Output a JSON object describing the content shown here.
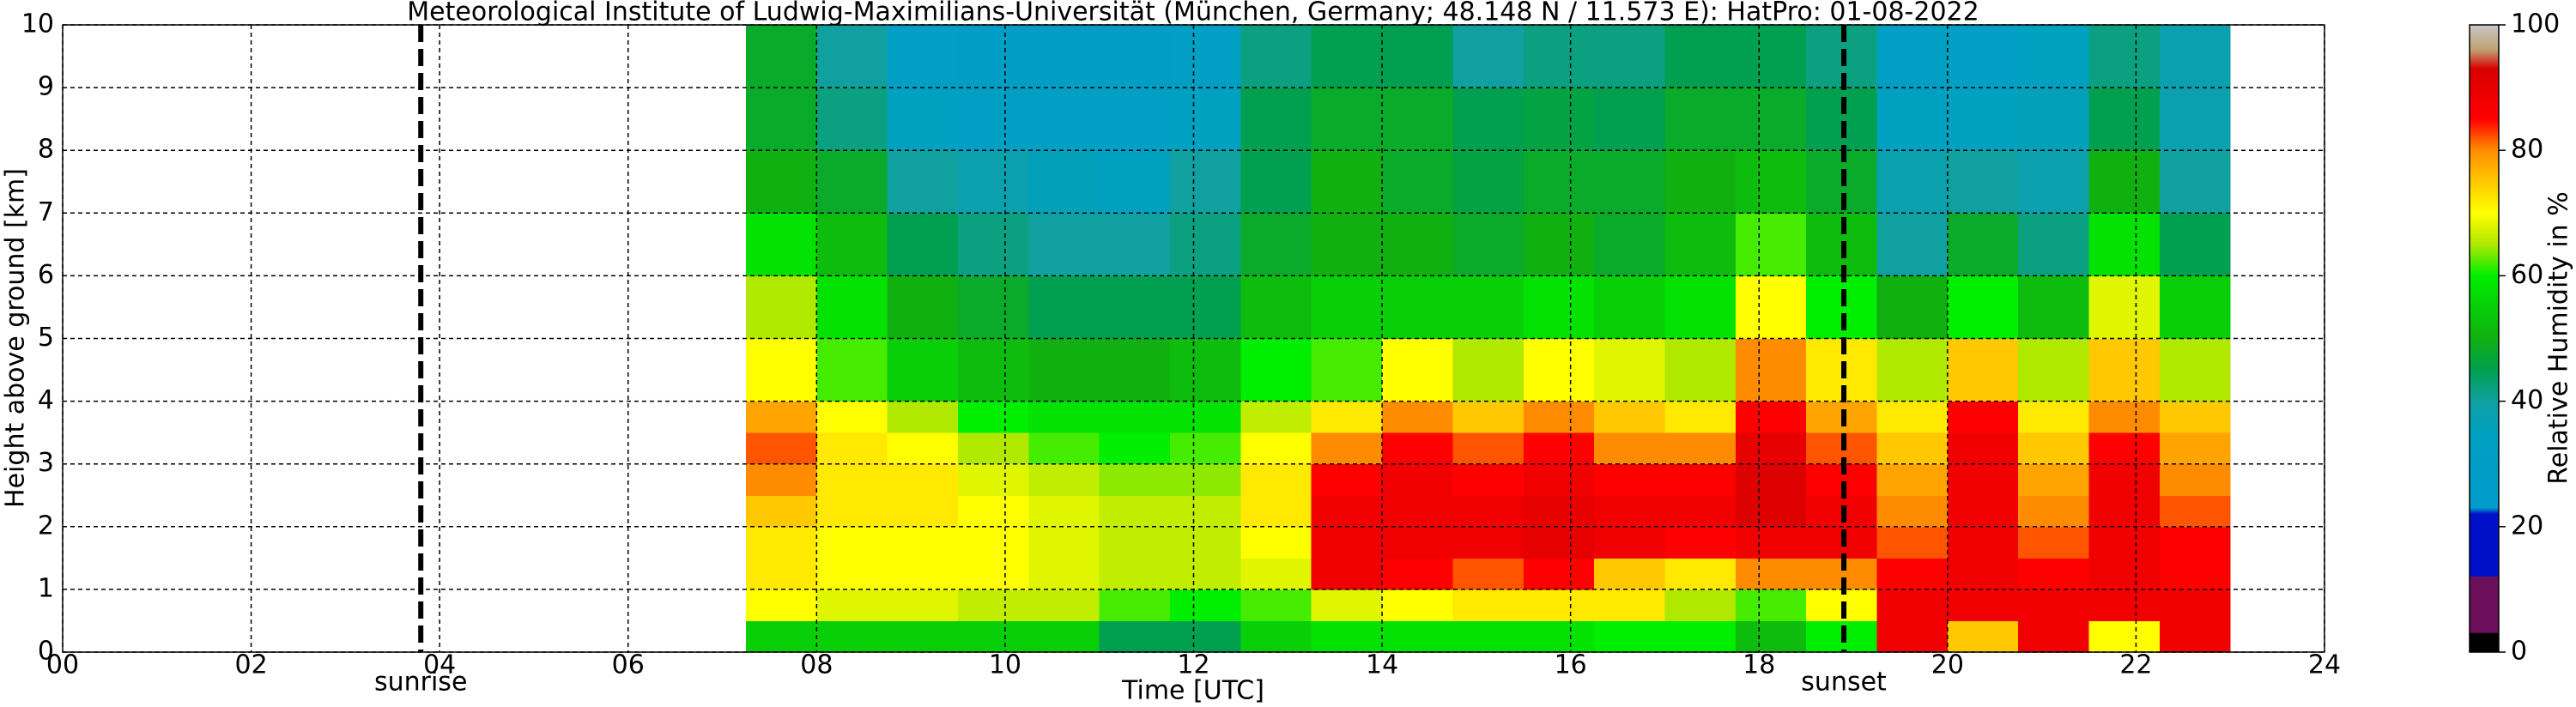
{
  "chart_data": {
    "type": "heatmap",
    "title": "Meteorological Institute of Ludwig-Maximilians-Universität (München, Germany; 48.148 N / 11.573 E):    HatPro: 01-08-2022",
    "xlabel": "Time [UTC]",
    "ylabel": "Height above ground [km]",
    "colorbar_label": "Relative Humidity in %",
    "xlim": [
      0,
      24
    ],
    "ylim": [
      0,
      10
    ],
    "clim": [
      0,
      100
    ],
    "xticks": [
      {
        "value": 0,
        "label": "00"
      },
      {
        "value": 2,
        "label": "02"
      },
      {
        "value": 4,
        "label": "04"
      },
      {
        "value": 6,
        "label": "06"
      },
      {
        "value": 8,
        "label": "08"
      },
      {
        "value": 10,
        "label": "10"
      },
      {
        "value": 12,
        "label": "12"
      },
      {
        "value": 14,
        "label": "14"
      },
      {
        "value": 16,
        "label": "16"
      },
      {
        "value": 18,
        "label": "18"
      },
      {
        "value": 20,
        "label": "20"
      },
      {
        "value": 22,
        "label": "22"
      },
      {
        "value": 24,
        "label": "24"
      }
    ],
    "yticks": [
      0,
      1,
      2,
      3,
      4,
      5,
      6,
      7,
      8,
      9,
      10
    ],
    "cticks": [
      0,
      20,
      40,
      60,
      80,
      100
    ],
    "grid": true,
    "annotations": [
      {
        "x": 3.8,
        "label": "sunrise"
      },
      {
        "x": 18.9,
        "label": "sunset"
      }
    ],
    "colorscale": [
      [
        0,
        "#000000"
      ],
      [
        3,
        "#000000"
      ],
      [
        3.1,
        "#6b0f5a"
      ],
      [
        12,
        "#6b0f5a"
      ],
      [
        12.1,
        "#0010c8"
      ],
      [
        22,
        "#0010c8"
      ],
      [
        23,
        "#009ccc"
      ],
      [
        35,
        "#00a0c0"
      ],
      [
        40,
        "#10a0a0"
      ],
      [
        45,
        "#00a050"
      ],
      [
        50,
        "#10b010"
      ],
      [
        60,
        "#00ee00"
      ],
      [
        65,
        "#b0e800"
      ],
      [
        70,
        "#ffff00"
      ],
      [
        75,
        "#ffc800"
      ],
      [
        80,
        "#ff8c00"
      ],
      [
        85,
        "#ff0000"
      ],
      [
        93,
        "#d80000"
      ],
      [
        96,
        "#c0a070"
      ],
      [
        100,
        "#c8c8c8"
      ]
    ],
    "x": [
      7.25,
      8.0,
      8.75,
      9.5,
      10.25,
      11.0,
      11.75,
      12.5,
      13.25,
      14.0,
      14.75,
      15.5,
      16.25,
      17.0,
      17.75,
      18.5,
      19.25,
      20.0,
      20.75,
      21.5,
      22.25,
      23.0
    ],
    "y": [
      0,
      0.5,
      1,
      1.5,
      2,
      2.5,
      3,
      3.5,
      4,
      5,
      6,
      7,
      8,
      9,
      10
    ],
    "values": [
      [
        55,
        55,
        55,
        55,
        55,
        45,
        45,
        55,
        58,
        58,
        58,
        58,
        60,
        60,
        52,
        60,
        88,
        75,
        88,
        70,
        88
      ],
      [
        70,
        68,
        68,
        66,
        66,
        62,
        60,
        62,
        68,
        70,
        72,
        72,
        72,
        65,
        62,
        70,
        88,
        88,
        88,
        88,
        88
      ],
      [
        72,
        70,
        70,
        70,
        68,
        66,
        66,
        68,
        88,
        85,
        82,
        85,
        75,
        72,
        80,
        80,
        85,
        88,
        85,
        88,
        85
      ],
      [
        72,
        70,
        70,
        70,
        68,
        66,
        66,
        70,
        88,
        88,
        88,
        90,
        88,
        85,
        88,
        88,
        82,
        88,
        82,
        88,
        85
      ],
      [
        75,
        72,
        72,
        70,
        68,
        66,
        66,
        72,
        88,
        88,
        88,
        90,
        88,
        88,
        92,
        88,
        80,
        88,
        80,
        88,
        82
      ],
      [
        80,
        72,
        72,
        68,
        66,
        64,
        64,
        72,
        85,
        88,
        85,
        88,
        85,
        85,
        92,
        85,
        78,
        88,
        78,
        88,
        80
      ],
      [
        82,
        72,
        70,
        65,
        62,
        60,
        62,
        70,
        80,
        85,
        82,
        85,
        80,
        80,
        90,
        82,
        75,
        88,
        75,
        85,
        78
      ],
      [
        78,
        70,
        65,
        60,
        58,
        58,
        58,
        66,
        72,
        80,
        75,
        80,
        75,
        72,
        85,
        78,
        72,
        85,
        72,
        80,
        75
      ],
      [
        70,
        62,
        55,
        52,
        50,
        50,
        52,
        60,
        62,
        70,
        65,
        70,
        68,
        65,
        80,
        72,
        65,
        75,
        65,
        75,
        65
      ],
      [
        65,
        58,
        50,
        48,
        45,
        45,
        45,
        52,
        55,
        55,
        55,
        58,
        55,
        58,
        70,
        60,
        50,
        60,
        52,
        68,
        55
      ],
      [
        58,
        52,
        45,
        42,
        40,
        40,
        42,
        48,
        50,
        50,
        48,
        50,
        48,
        52,
        62,
        52,
        40,
        48,
        42,
        58,
        45
      ],
      [
        50,
        48,
        40,
        38,
        36,
        35,
        40,
        45,
        50,
        48,
        46,
        48,
        48,
        50,
        52,
        48,
        38,
        40,
        38,
        50,
        40
      ],
      [
        48,
        42,
        35,
        32,
        32,
        32,
        35,
        45,
        48,
        48,
        45,
        46,
        45,
        48,
        48,
        45,
        35,
        35,
        36,
        45,
        38
      ],
      [
        48,
        40,
        32,
        30,
        30,
        30,
        32,
        42,
        45,
        45,
        40,
        42,
        42,
        45,
        45,
        42,
        32,
        32,
        34,
        42,
        38
      ]
    ]
  }
}
